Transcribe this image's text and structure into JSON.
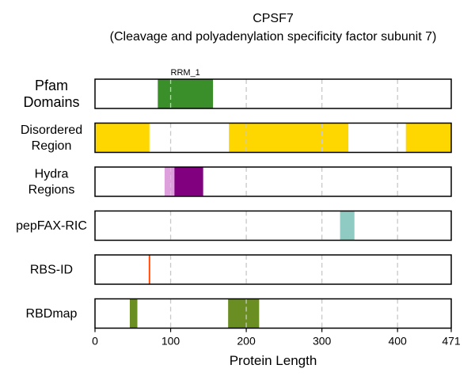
{
  "chart_data": {
    "type": "bar",
    "title": "CPSF7",
    "subtitle": "(Cleavage and polyadenylation specificity factor subunit 7)",
    "xlabel": "Protein Length",
    "xlim": [
      0,
      471
    ],
    "xticks": [
      0,
      100,
      200,
      300,
      400,
      471
    ],
    "xtick_labels": [
      "0",
      "100",
      "200",
      "300",
      "400",
      "471"
    ],
    "grid": "vertical dashed at 100, 200, 300, 400",
    "rows": [
      {
        "label_lines": [
          "Pfam",
          "Domains"
        ],
        "segments": [
          {
            "start": 83,
            "end": 156,
            "color": "#3a8f2a",
            "annotation": "RRM_1"
          }
        ]
      },
      {
        "label_lines": [
          "Disordered",
          "Region"
        ],
        "segments": [
          {
            "start": 0,
            "end": 72,
            "color": "#ffd700"
          },
          {
            "start": 177,
            "end": 335,
            "color": "#ffd700"
          },
          {
            "start": 411,
            "end": 471,
            "color": "#ffd700"
          }
        ]
      },
      {
        "label_lines": [
          "Hydra",
          "Regions"
        ],
        "segments": [
          {
            "start": 92,
            "end": 105,
            "color": "#dda0dd"
          },
          {
            "start": 105,
            "end": 143,
            "color": "#800080"
          }
        ]
      },
      {
        "label_lines": [
          "pepFAX-RIC"
        ],
        "segments": [
          {
            "start": 324,
            "end": 343,
            "color": "#8fcbc3"
          }
        ]
      },
      {
        "label_lines": [
          "RBS-ID"
        ],
        "segments": [
          {
            "start": 71,
            "end": 73,
            "color": "#ff4500"
          }
        ]
      },
      {
        "label_lines": [
          "RBDmap"
        ],
        "segments": [
          {
            "start": 46,
            "end": 56,
            "color": "#6b8e23"
          },
          {
            "start": 176,
            "end": 217,
            "color": "#6b8e23"
          }
        ]
      }
    ]
  }
}
